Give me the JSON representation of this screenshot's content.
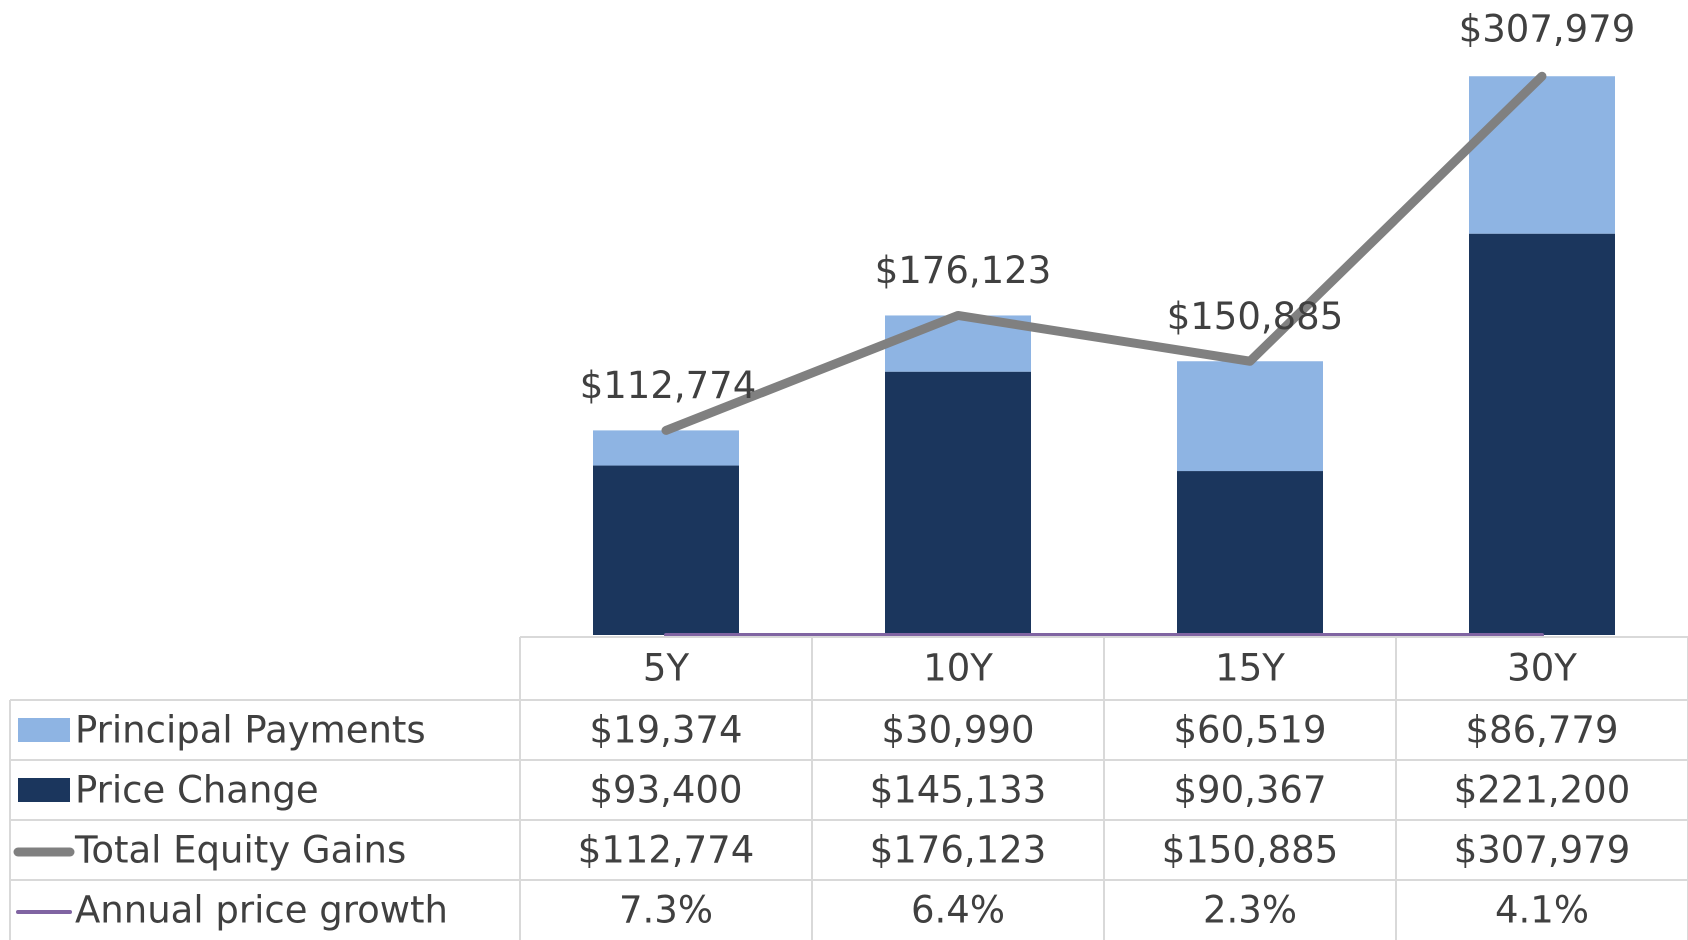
{
  "chart_data": {
    "type": "bar",
    "categories": [
      "5Y",
      "10Y",
      "15Y",
      "30Y"
    ],
    "ylim": [
      0,
      350000
    ],
    "series": [
      {
        "name": "Principal Payments",
        "type": "bar",
        "color": "#8eb4e3",
        "values": [
          19374,
          30990,
          60519,
          86779
        ],
        "value_labels": [
          "$19,374",
          "$30,990",
          "$60,519",
          "$86,779"
        ]
      },
      {
        "name": "Price Change",
        "type": "bar",
        "color": "#1b365d",
        "values": [
          93400,
          145133,
          90367,
          221200
        ],
        "value_labels": [
          "$93,400",
          "$145,133",
          "$90,367",
          "$221,200"
        ]
      },
      {
        "name": "Total Equity Gains",
        "type": "line",
        "color": "#808080",
        "values": [
          112774,
          176123,
          150885,
          307979
        ],
        "value_labels": [
          "$112,774",
          "$176,123",
          "$150,885",
          "$307,979"
        ]
      },
      {
        "name": "Annual price growth",
        "type": "line",
        "color": "#8064a2",
        "values": [
          7.3,
          6.4,
          2.3,
          4.1
        ],
        "value_labels": [
          "7.3%",
          "6.4%",
          "2.3%",
          "4.1%"
        ]
      }
    ]
  }
}
